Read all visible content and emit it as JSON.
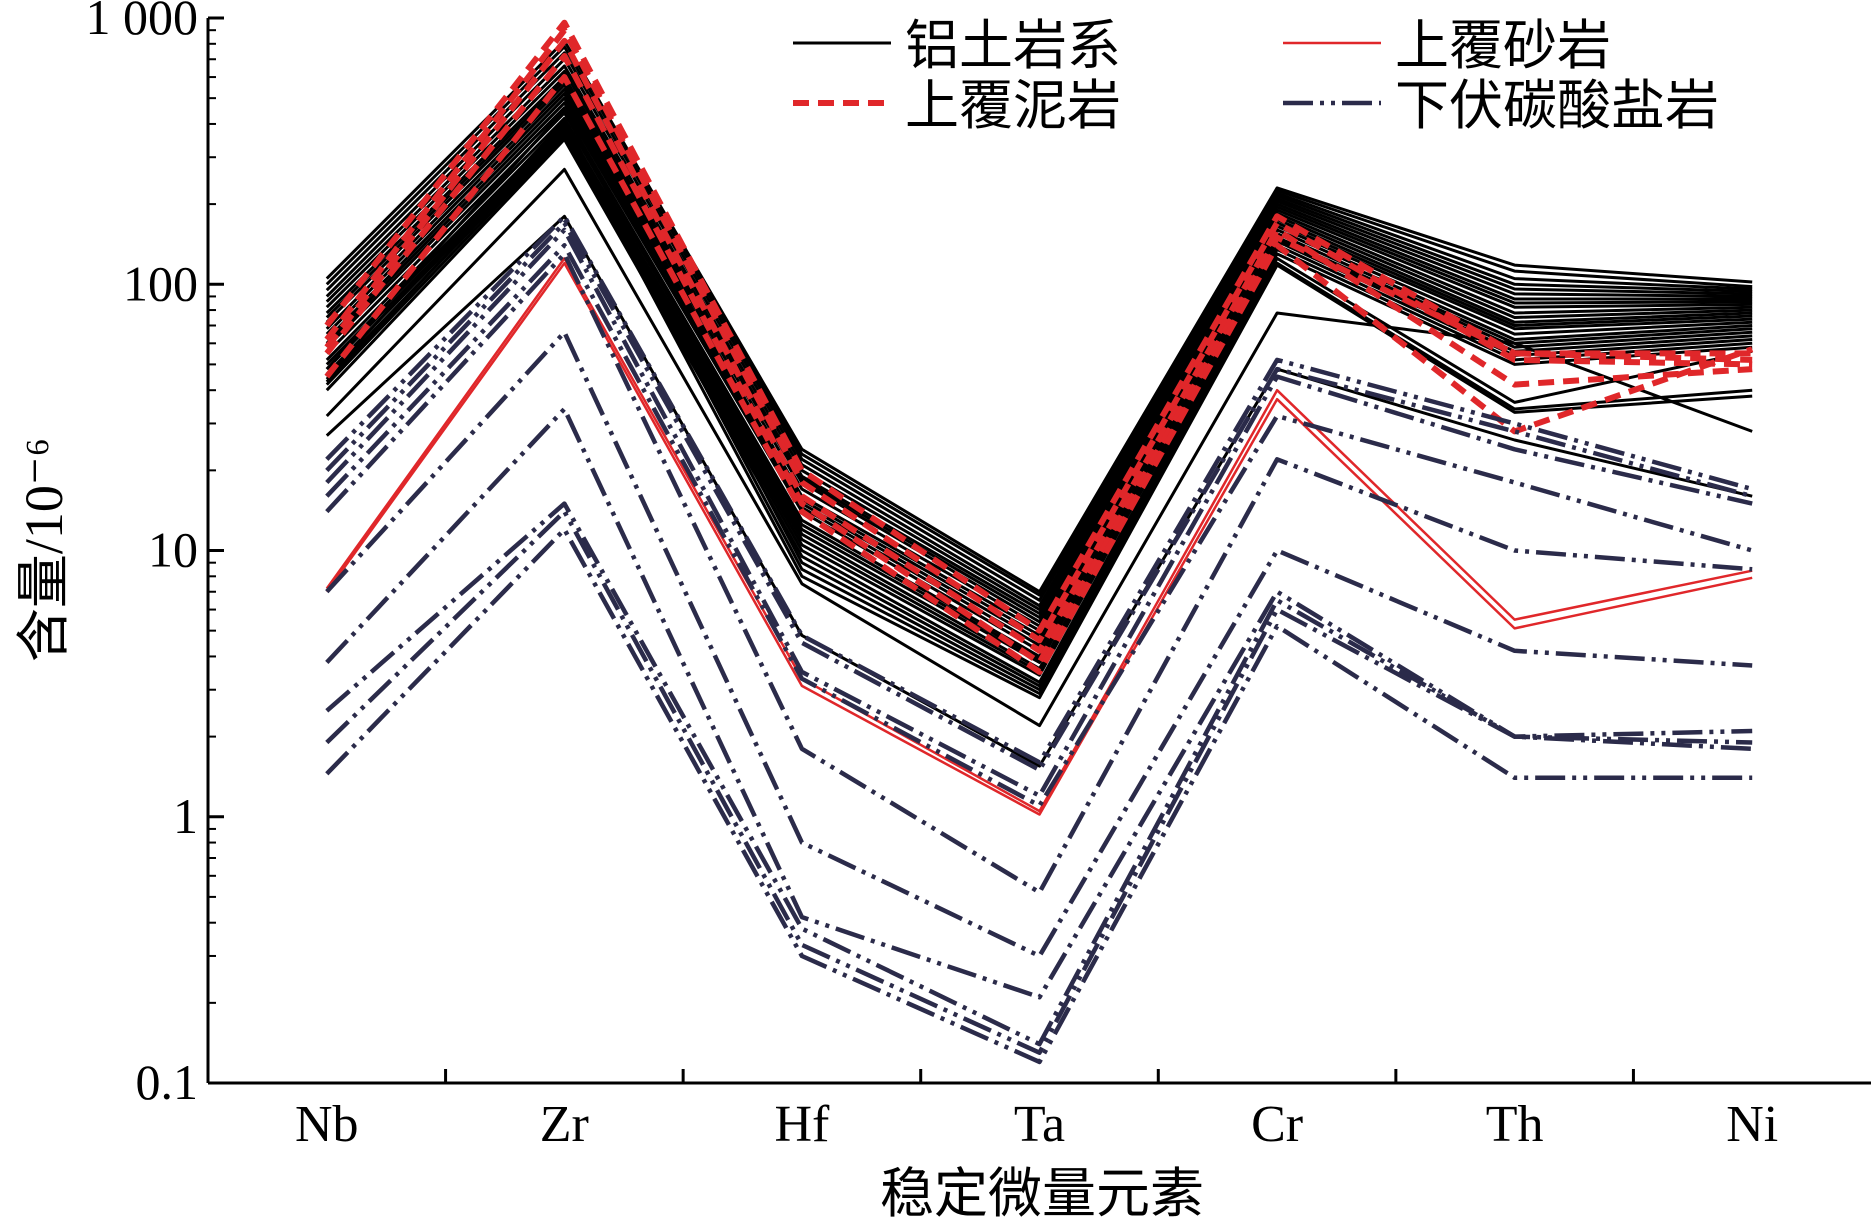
{
  "chart_data": {
    "type": "line",
    "title": "",
    "xlabel": "稳定微量元素",
    "ylabel": "含量/10⁻⁶",
    "yscale": "log",
    "ylim": [
      0.1,
      1000
    ],
    "y_ticks": [
      {
        "value": 0.1,
        "label": "0.1"
      },
      {
        "value": 1,
        "label": "1"
      },
      {
        "value": 10,
        "label": "10"
      },
      {
        "value": 100,
        "label": "100"
      },
      {
        "value": 1000,
        "label": "1 000"
      }
    ],
    "categories": [
      "Nb",
      "Zr",
      "Hf",
      "Ta",
      "Cr",
      "Th",
      "Ni"
    ],
    "legend_position": "top-right",
    "groups": [
      {
        "name": "铝土岩系",
        "color": "#000000",
        "dash": "solid",
        "width": 3,
        "series": [
          [
            105,
            820,
            24,
            7.0,
            230,
            118,
            102
          ],
          [
            100,
            780,
            23,
            6.8,
            225,
            112,
            98
          ],
          [
            95,
            740,
            22,
            6.5,
            220,
            105,
            96
          ],
          [
            90,
            700,
            21,
            6.2,
            215,
            100,
            94
          ],
          [
            86,
            660,
            20,
            6.0,
            210,
            96,
            92
          ],
          [
            82,
            630,
            19,
            5.8,
            205,
            92,
            90
          ],
          [
            78,
            600,
            18.5,
            5.6,
            200,
            88,
            88
          ],
          [
            75,
            580,
            18,
            5.4,
            195,
            85,
            86
          ],
          [
            72,
            560,
            17,
            5.2,
            190,
            82,
            84
          ],
          [
            68,
            540,
            16,
            5.0,
            185,
            78,
            82
          ],
          [
            65,
            520,
            15.5,
            4.8,
            180,
            75,
            80
          ],
          [
            62,
            500,
            15,
            4.6,
            175,
            72,
            78
          ],
          [
            60,
            480,
            14.5,
            4.4,
            170,
            70,
            76
          ],
          [
            58,
            460,
            14,
            4.2,
            165,
            68,
            74
          ],
          [
            55,
            440,
            13,
            4.0,
            160,
            65,
            72
          ],
          [
            52,
            420,
            12.5,
            3.9,
            155,
            62,
            70
          ],
          [
            50,
            400,
            12,
            3.8,
            150,
            60,
            68
          ],
          [
            48,
            390,
            11.5,
            3.6,
            148,
            58,
            66
          ],
          [
            46,
            380,
            11,
            3.5,
            145,
            56,
            64
          ],
          [
            44,
            370,
            10.5,
            3.4,
            140,
            54,
            62
          ],
          [
            42,
            360,
            10,
            3.2,
            135,
            52,
            60
          ],
          [
            40,
            350,
            9.5,
            3.1,
            130,
            50,
            58
          ],
          [
            48,
            450,
            9,
            3.0,
            125,
            36,
            56
          ],
          [
            45,
            410,
            8.5,
            2.9,
            120,
            34,
            40
          ],
          [
            43,
            380,
            8.0,
            2.8,
            118,
            33,
            38
          ],
          [
            32,
            270,
            7.5,
            2.2,
            78,
            60,
            28
          ],
          [
            27,
            180,
            4.8,
            1.55,
            48,
            26,
            16
          ]
        ]
      },
      {
        "name": "上覆泥岩",
        "color": "#e0272a",
        "dash": "dashed",
        "width": 6,
        "series": [
          [
            70,
            960,
            20,
            5.0,
            180,
            55,
            55
          ],
          [
            62,
            900,
            18,
            4.6,
            170,
            52,
            50
          ],
          [
            58,
            820,
            16,
            4.2,
            160,
            42,
            48
          ],
          [
            55,
            720,
            15,
            3.8,
            150,
            55,
            52
          ],
          [
            45,
            600,
            14,
            3.5,
            140,
            28,
            57
          ]
        ]
      },
      {
        "name": "上覆砂岩",
        "color": "#e0272a",
        "dash": "solid",
        "width": 2.5,
        "series": [
          [
            7.2,
            125,
            3.3,
            1.05,
            40,
            5.5,
            8.4
          ],
          [
            7.0,
            120,
            3.1,
            1.02,
            37,
            5.1,
            7.9
          ]
        ]
      },
      {
        "name": "下伏碳酸盐岩",
        "color": "#2b2b4a",
        "dash": "dash-dot-dot",
        "width": 4.5,
        "series": [
          [
            22,
            180,
            4.8,
            1.6,
            52,
            30,
            17
          ],
          [
            20,
            170,
            4.5,
            1.5,
            48,
            28,
            16
          ],
          [
            18,
            160,
            3.5,
            1.2,
            45,
            24,
            15
          ],
          [
            16,
            140,
            3.3,
            1.1,
            32,
            18,
            10
          ],
          [
            14,
            130,
            1.8,
            0.52,
            22,
            10,
            8.5
          ],
          [
            7,
            66,
            0.8,
            0.3,
            10,
            4.2,
            3.7
          ],
          [
            3.8,
            34,
            0.42,
            0.21,
            7.0,
            2.0,
            2.1
          ],
          [
            2.5,
            15,
            0.38,
            0.14,
            6.5,
            2.0,
            1.9
          ],
          [
            1.9,
            14,
            0.33,
            0.13,
            6.0,
            2.0,
            1.8
          ],
          [
            1.45,
            12,
            0.3,
            0.12,
            5.2,
            1.4,
            1.4
          ]
        ]
      }
    ]
  }
}
